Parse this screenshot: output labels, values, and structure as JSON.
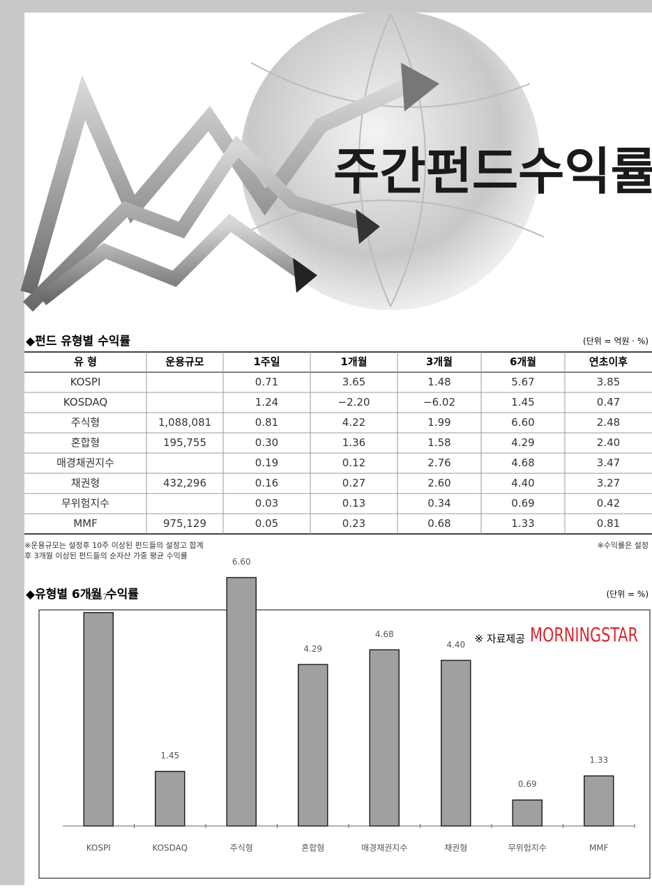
{
  "header": {
    "title": "주간펀드수익률"
  },
  "table": {
    "title": "◆펀드 유형별 수익률",
    "unit": "(단위 = 억원 · %)",
    "columns": [
      "유 형",
      "운용규모",
      "1주일",
      "1개월",
      "3개월",
      "6개월",
      "연초이후"
    ],
    "rows": [
      [
        "KOSPI",
        null,
        "0.71",
        "3.65",
        "1.48",
        "5.67",
        "3.85"
      ],
      [
        "KOSDAQ",
        null,
        "1.24",
        "−2.20",
        "−6.02",
        "1.45",
        "0.47"
      ],
      [
        "주식형",
        "1,088,081",
        "0.81",
        "4.22",
        "1.99",
        "6.60",
        "2.48"
      ],
      [
        "혼합형",
        "195,755",
        "0.30",
        "1.36",
        "1.58",
        "4.29",
        "2.40"
      ],
      [
        "매경채권지수",
        null,
        "0.19",
        "0.12",
        "2.76",
        "4.68",
        "3.47"
      ],
      [
        "채권형",
        "432,296",
        "0.16",
        "0.27",
        "2.60",
        "4.40",
        "3.27"
      ],
      [
        "무위험지수",
        null,
        "0.03",
        "0.13",
        "0.34",
        "0.69",
        "0.42"
      ],
      [
        "MMF",
        "975,129",
        "0.05",
        "0.23",
        "0.68",
        "1.33",
        "0.81"
      ]
    ],
    "notes": [
      "※운용규모는 설정후 10주 이상된 펀드들의 설정고 합계",
      "후 3개월 이상된 펀드들의 순자산 가중 평균 수익률"
    ],
    "note_right": "※수익률은 설정"
  },
  "chart_data": {
    "type": "bar",
    "title": "◆유형별 6개월 수익률",
    "unit": "(단위 = %)",
    "source": "※ 자료제공",
    "source_logo": "MORNINGSTAR",
    "categories": [
      "KOSPI",
      "KOSDAQ",
      "주식형",
      "혼합형",
      "매경채권지수",
      "채권형",
      "무위험지수",
      "MMF"
    ],
    "values": [
      5.67,
      1.45,
      6.6,
      4.29,
      4.68,
      4.4,
      0.69,
      1.33
    ],
    "value_labels": [
      "5.67",
      "1.45",
      "6.60",
      "4.29",
      "4.68",
      "4.40",
      "0.69",
      "1.33"
    ],
    "color": "#a0a0a0",
    "ylim": [
      0,
      7
    ]
  }
}
